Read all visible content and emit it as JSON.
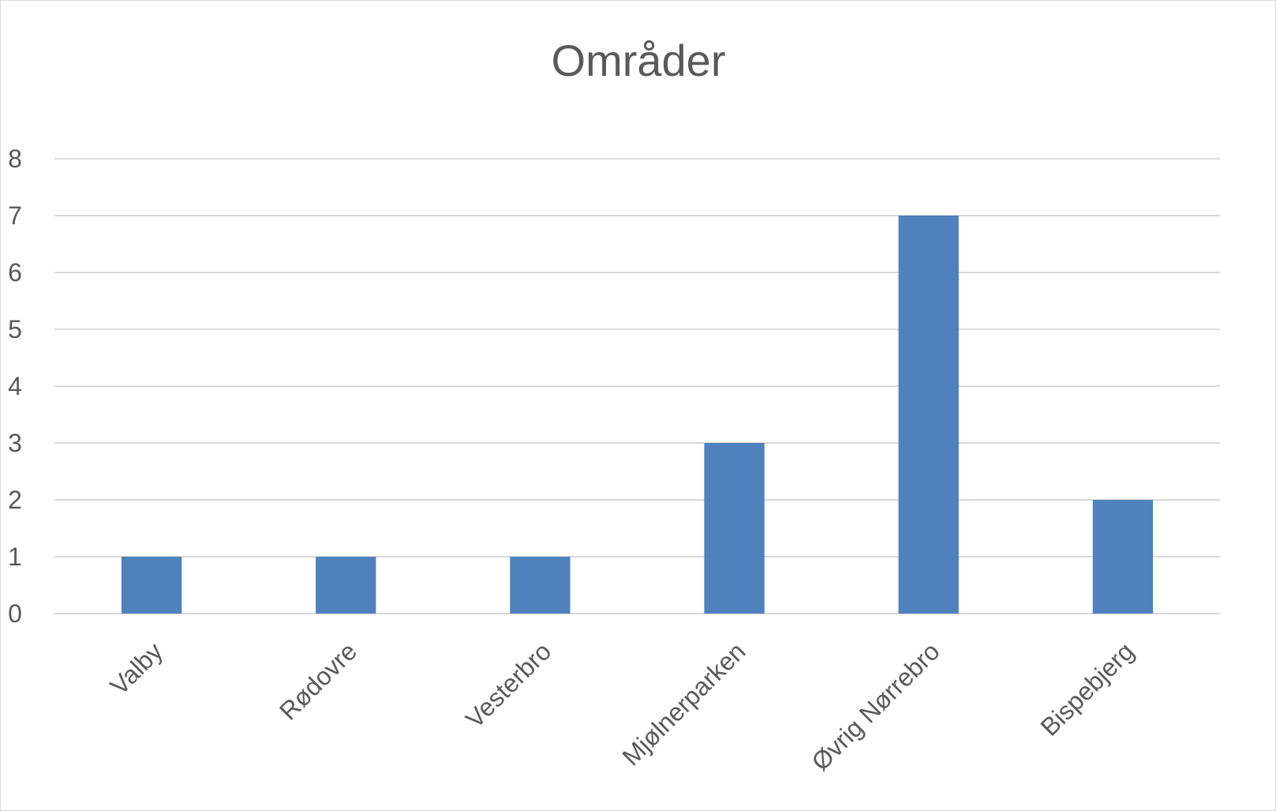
{
  "chart_data": {
    "type": "bar",
    "title": "Områder",
    "xlabel": "",
    "ylabel": "",
    "categories": [
      "Valby",
      "Rødovre",
      "Vesterbro",
      "Mjølnerparken",
      "Øvrig Nørrebro",
      "Bispebjerg"
    ],
    "values": [
      1,
      1,
      1,
      3,
      7,
      2
    ],
    "ylim": [
      0,
      8
    ],
    "yticks": [
      "0",
      "1",
      "2",
      "3",
      "4",
      "5",
      "6",
      "7",
      "8"
    ],
    "grid": true,
    "legend": "none",
    "bar_color": "#4f81bd",
    "gridline_color": "#d9d9d9",
    "text_color": "#595959"
  }
}
